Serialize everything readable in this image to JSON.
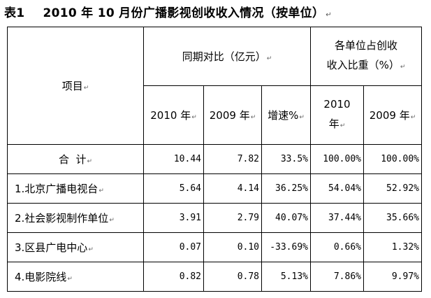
{
  "title": {
    "label": "表1",
    "text": "2010 年 10 月份广播影视创收收入情况（按单位）"
  },
  "header": {
    "item": "项目",
    "group1": "同期对比（亿元）",
    "group2_line1": "各单位占创收",
    "group2_line2": "收入比重（%）",
    "col_2010": "2010 年",
    "col_2009": "2009 年",
    "col_growth": "增速%",
    "col_share2010_a": "2010",
    "col_share2010_b": "年",
    "col_share2009": "2009 年"
  },
  "rows": [
    {
      "name": "合  计",
      "v2010": "10.44",
      "v2009": "7.82",
      "growth": "33.5%",
      "s2010": "100.00%",
      "s2009": "100.00%"
    },
    {
      "name": "1.北京广播电视台",
      "v2010": "5.64",
      "v2009": "4.14",
      "growth": "36.25%",
      "s2010": "54.04%",
      "s2009": "52.92%"
    },
    {
      "name": "2.社会影视制作单位",
      "v2010": "3.91",
      "v2009": "2.79",
      "growth": "40.07%",
      "s2010": "37.44%",
      "s2009": "35.66%"
    },
    {
      "name": "3.区县广电中心",
      "v2010": "0.07",
      "v2009": "0.10",
      "growth": "-33.69%",
      "s2010": "0.66%",
      "s2009": "1.32%"
    },
    {
      "name": "4.电影院线",
      "v2010": "0.82",
      "v2009": "0.78",
      "growth": "5.13%",
      "s2010": "7.86%",
      "s2009": "9.97%"
    }
  ]
}
